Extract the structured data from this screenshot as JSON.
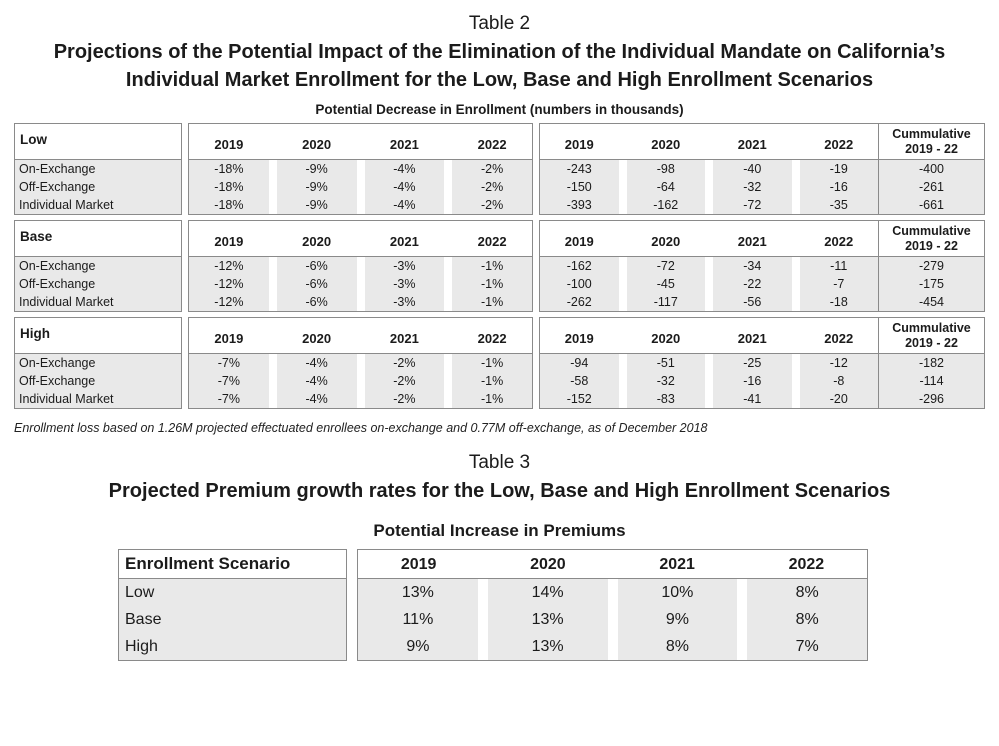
{
  "headings": {
    "table2_label": "Table 2",
    "table2_title": "Projections of the Potential Impact of the Elimination of the Individual Mandate on California’s Individual Market Enrollment for the Low, Base and High Enrollment Scenarios",
    "table2_subtitle": "Potential Decrease in Enrollment (numbers in thousands)",
    "footnote": "Enrollment loss based on 1.26M projected effectuated enrollees on-exchange and 0.77M off-exchange, as of December 2018",
    "table3_label": "Table 3",
    "table3_title": "Projected Premium growth rates for the Low, Base and High Enrollment Scenarios",
    "table3_subtitle": "Potential Increase in Premiums"
  },
  "years": [
    "2019",
    "2020",
    "2021",
    "2022"
  ],
  "table2": {
    "cumulative_header_line1": "Cummulative",
    "cumulative_header_line2": "2019 - 22",
    "groups": [
      {
        "name": "Low",
        "rows": [
          {
            "label": "On-Exchange",
            "pct": [
              "-18%",
              "-9%",
              "-4%",
              "-2%"
            ],
            "num": [
              "-243",
              "-98",
              "-40",
              "-19"
            ],
            "cum": "-400"
          },
          {
            "label": "Off-Exchange",
            "pct": [
              "-18%",
              "-9%",
              "-4%",
              "-2%"
            ],
            "num": [
              "-150",
              "-64",
              "-32",
              "-16"
            ],
            "cum": "-261"
          },
          {
            "label": "Individual Market",
            "pct": [
              "-18%",
              "-9%",
              "-4%",
              "-2%"
            ],
            "num": [
              "-393",
              "-162",
              "-72",
              "-35"
            ],
            "cum": "-661"
          }
        ]
      },
      {
        "name": "Base",
        "rows": [
          {
            "label": "On-Exchange",
            "pct": [
              "-12%",
              "-6%",
              "-3%",
              "-1%"
            ],
            "num": [
              "-162",
              "-72",
              "-34",
              "-11"
            ],
            "cum": "-279"
          },
          {
            "label": "Off-Exchange",
            "pct": [
              "-12%",
              "-6%",
              "-3%",
              "-1%"
            ],
            "num": [
              "-100",
              "-45",
              "-22",
              "-7"
            ],
            "cum": "-175"
          },
          {
            "label": "Individual Market",
            "pct": [
              "-12%",
              "-6%",
              "-3%",
              "-1%"
            ],
            "num": [
              "-262",
              "-117",
              "-56",
              "-18"
            ],
            "cum": "-454"
          }
        ]
      },
      {
        "name": "High",
        "rows": [
          {
            "label": "On-Exchange",
            "pct": [
              "-7%",
              "-4%",
              "-2%",
              "-1%"
            ],
            "num": [
              "-94",
              "-51",
              "-25",
              "-12"
            ],
            "cum": "-182"
          },
          {
            "label": "Off-Exchange",
            "pct": [
              "-7%",
              "-4%",
              "-2%",
              "-1%"
            ],
            "num": [
              "-58",
              "-32",
              "-16",
              "-8"
            ],
            "cum": "-114"
          },
          {
            "label": "Individual Market",
            "pct": [
              "-7%",
              "-4%",
              "-2%",
              "-1%"
            ],
            "num": [
              "-152",
              "-83",
              "-41",
              "-20"
            ],
            "cum": "-296"
          }
        ]
      }
    ]
  },
  "table3": {
    "corner_header": "Enrollment Scenario",
    "rows": [
      {
        "label": "Low",
        "values": [
          "13%",
          "14%",
          "10%",
          "8%"
        ]
      },
      {
        "label": "Base",
        "values": [
          "11%",
          "13%",
          "9%",
          "8%"
        ]
      },
      {
        "label": "High",
        "values": [
          "9%",
          "13%",
          "8%",
          "7%"
        ]
      }
    ]
  }
}
